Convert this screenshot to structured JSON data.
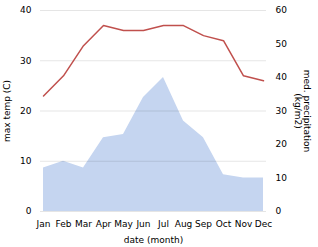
{
  "chart_data": {
    "type": "line",
    "categories": [
      "Jan",
      "Feb",
      "Mar",
      "Apr",
      "May",
      "Jun",
      "Jul",
      "Aug",
      "Sep",
      "Oct",
      "Nov",
      "Dec"
    ],
    "xlabel": "date (month)",
    "ylabel": "max temp (C)",
    "y2label": "med. precipitation\n(kg/m2)",
    "ylim": [
      0,
      40
    ],
    "yticks": [
      0,
      10,
      20,
      30,
      40
    ],
    "y2lim": [
      0,
      60
    ],
    "y2ticks": [
      0,
      10,
      20,
      30,
      40,
      50,
      60
    ],
    "grid": true,
    "series": [
      {
        "type": "area",
        "axis": "y2",
        "color": "#c5d5f0",
        "values": [
          13,
          15,
          13,
          22,
          23,
          34,
          40,
          27,
          22,
          11,
          10,
          10
        ]
      },
      {
        "type": "line",
        "color": "#c0504d",
        "values": [
          23,
          27,
          33,
          37,
          36,
          36,
          37,
          37,
          35,
          34,
          27,
          26
        ]
      }
    ]
  }
}
